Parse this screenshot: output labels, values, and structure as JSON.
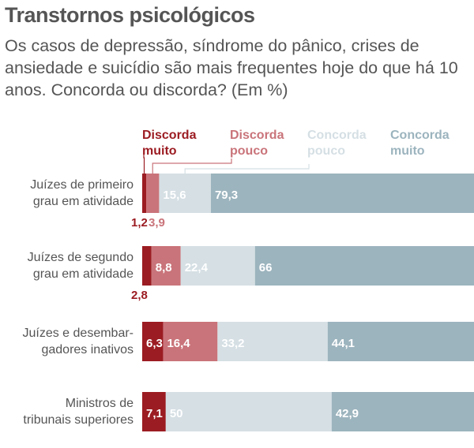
{
  "chart_data": {
    "type": "bar",
    "orientation": "horizontal",
    "stacked": true,
    "title": "Transtornos psicológicos",
    "subtitle": "Os casos de depressão, síndrome do pânico, crises de ansiedade e suicídio são mais frequentes hoje do que há 10 anos. Concorda ou discorda? (Em %)",
    "categories": [
      [
        "Juízes de primeiro",
        "grau em atividade"
      ],
      [
        "Juízes de segundo",
        "grau em atividade"
      ],
      [
        "Juízes e desembar-",
        "gadores inativos"
      ],
      [
        "Ministros de",
        "tribunais superiores"
      ]
    ],
    "value_labels": [
      [
        "1,2",
        "3,9",
        "15,6",
        "79,3"
      ],
      [
        "2,8",
        "8,8",
        "22,4",
        "66"
      ],
      [
        "6,3",
        "16,4",
        "33,2",
        "44,1"
      ],
      [
        "7,1",
        "",
        "50",
        "42,9"
      ]
    ],
    "series": [
      {
        "name": [
          "Discorda",
          "muito"
        ],
        "color": "#9b1c22",
        "label_color": "#ffffff",
        "values": [
          1.2,
          2.8,
          6.3,
          7.1
        ]
      },
      {
        "name": [
          "Discorda",
          "pouco"
        ],
        "color": "#c9747a",
        "label_color": "#ffffff",
        "values": [
          3.9,
          8.8,
          16.4,
          0
        ]
      },
      {
        "name": [
          "Concorda",
          "pouco"
        ],
        "color": "#d5dfe4",
        "label_color": "#ffffff",
        "values": [
          15.6,
          22.4,
          33.2,
          50
        ]
      },
      {
        "name": [
          "Concorda",
          "muito"
        ],
        "color": "#9cb4be",
        "label_color": "#ffffff",
        "values": [
          79.3,
          66,
          44.1,
          42.9
        ]
      }
    ],
    "xlim": [
      0,
      100
    ],
    "grid": false,
    "legend": "top"
  }
}
